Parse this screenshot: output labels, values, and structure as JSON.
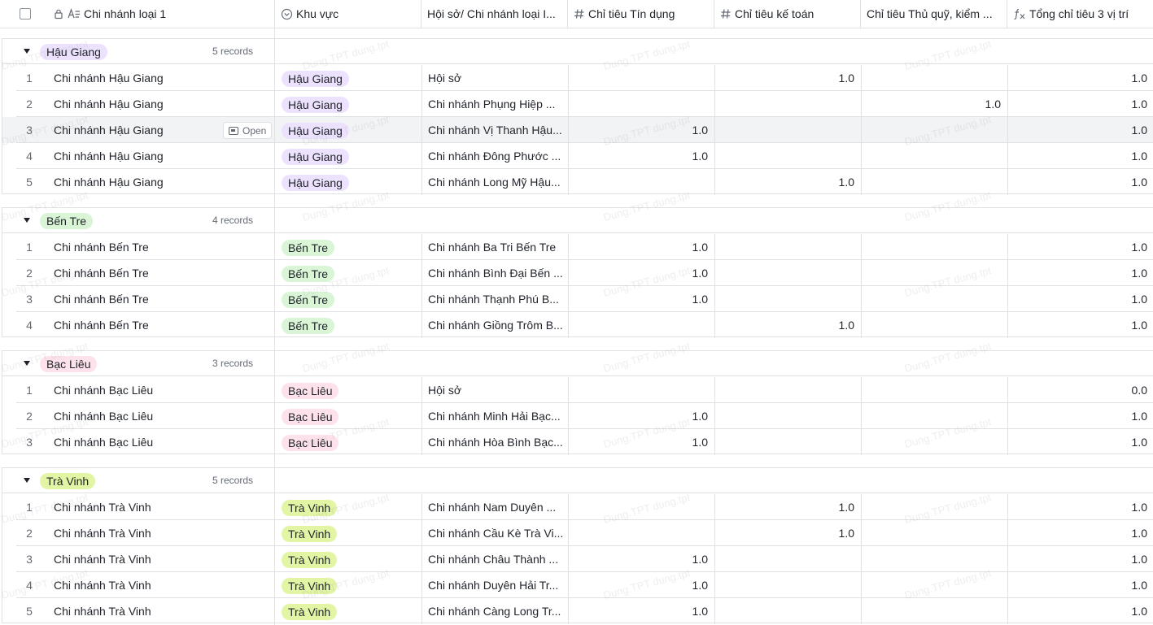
{
  "header": {
    "columns": [
      {
        "label": "Chi nhánh loại 1",
        "icon": "text-lock-icon"
      },
      {
        "label": "Khu vực",
        "icon": "single-select-icon"
      },
      {
        "label": "Hội sở/ Chi nhánh loại I...",
        "icon": ""
      },
      {
        "label": "Chỉ tiêu Tín dụng",
        "icon": "number-icon"
      },
      {
        "label": "Chỉ tiêu kế toán",
        "icon": "number-icon"
      },
      {
        "label": "Chỉ tiêu Thủ quỹ, kiểm ...",
        "icon": ""
      },
      {
        "label": "Tổng chỉ tiêu 3 vị trí",
        "icon": "formula-icon"
      }
    ]
  },
  "open_label": "Open",
  "watermark": "Dung.TPT dung.tpt",
  "colors": {
    "hau_giang_bg": "#ece2fe",
    "ben_tre_bg": "#d9f5d6",
    "bac_lieu_bg": "#fde2ec",
    "tra_vinh_bg": "#e1f5a5",
    "border": "#dee0e3",
    "hover": "#f2f3f5"
  },
  "groups": [
    {
      "name": "Hậu Giang",
      "count": "5 records",
      "tag_bg": "#ece2fe",
      "rows": [
        {
          "n": "1",
          "branch": "Chi nhánh Hậu Giang",
          "region": "Hậu Giang",
          "office": "Hội sở",
          "credit": "",
          "accounting": "1.0",
          "cashier": "",
          "total": "1.0"
        },
        {
          "n": "2",
          "branch": "Chi nhánh Hậu Giang",
          "region": "Hậu Giang",
          "office": "Chi nhánh Phụng Hiệp ...",
          "credit": "",
          "accounting": "",
          "cashier": "1.0",
          "total": "1.0"
        },
        {
          "n": "3",
          "branch": "Chi nhánh Hậu Giang",
          "region": "Hậu Giang",
          "office": "Chi nhánh Vị Thanh Hậu...",
          "credit": "1.0",
          "accounting": "",
          "cashier": "",
          "total": "1.0",
          "hover": true
        },
        {
          "n": "4",
          "branch": "Chi nhánh Hậu Giang",
          "region": "Hậu Giang",
          "office": "Chi nhánh Đông Phước ...",
          "credit": "1.0",
          "accounting": "",
          "cashier": "",
          "total": "1.0"
        },
        {
          "n": "5",
          "branch": "Chi nhánh Hậu Giang",
          "region": "Hậu Giang",
          "office": "Chi nhánh Long Mỹ Hậu...",
          "credit": "",
          "accounting": "1.0",
          "cashier": "",
          "total": "1.0"
        }
      ]
    },
    {
      "name": "Bến Tre",
      "count": "4 records",
      "tag_bg": "#d9f5d6",
      "rows": [
        {
          "n": "1",
          "branch": "Chi nhánh Bến Tre",
          "region": "Bến Tre",
          "office": "Chi nhánh Ba Tri Bến Tre",
          "credit": "1.0",
          "accounting": "",
          "cashier": "",
          "total": "1.0"
        },
        {
          "n": "2",
          "branch": "Chi nhánh Bến Tre",
          "region": "Bến Tre",
          "office": "Chi nhánh Bình Đại Bến ...",
          "credit": "1.0",
          "accounting": "",
          "cashier": "",
          "total": "1.0"
        },
        {
          "n": "3",
          "branch": "Chi nhánh Bến Tre",
          "region": "Bến Tre",
          "office": "Chi nhánh Thạnh Phú B...",
          "credit": "1.0",
          "accounting": "",
          "cashier": "",
          "total": "1.0"
        },
        {
          "n": "4",
          "branch": "Chi nhánh Bến Tre",
          "region": "Bến Tre",
          "office": "Chi nhánh Giồng Trôm B...",
          "credit": "",
          "accounting": "1.0",
          "cashier": "",
          "total": "1.0"
        }
      ]
    },
    {
      "name": "Bạc Liêu",
      "count": "3 records",
      "tag_bg": "#fde2ec",
      "rows": [
        {
          "n": "1",
          "branch": "Chi nhánh Bạc Liêu",
          "region": "Bạc Liêu",
          "office": "Hội sở",
          "credit": "",
          "accounting": "",
          "cashier": "",
          "total": "0.0"
        },
        {
          "n": "2",
          "branch": "Chi nhánh Bạc Liêu",
          "region": "Bạc Liêu",
          "office": "Chi nhánh Minh Hải Bạc...",
          "credit": "1.0",
          "accounting": "",
          "cashier": "",
          "total": "1.0"
        },
        {
          "n": "3",
          "branch": "Chi nhánh Bạc Liêu",
          "region": "Bạc Liêu",
          "office": "Chi nhánh Hòa Bình Bạc...",
          "credit": "1.0",
          "accounting": "",
          "cashier": "",
          "total": "1.0"
        }
      ]
    },
    {
      "name": "Trà Vinh",
      "count": "5 records",
      "tag_bg": "#e1f5a5",
      "rows": [
        {
          "n": "1",
          "branch": "Chi nhánh Trà Vinh",
          "region": "Trà Vinh",
          "office": "Chi nhánh Nam Duyên ...",
          "credit": "",
          "accounting": "1.0",
          "cashier": "",
          "total": "1.0"
        },
        {
          "n": "2",
          "branch": "Chi nhánh Trà Vinh",
          "region": "Trà Vinh",
          "office": "Chi nhánh Cầu Kè Trà Vi...",
          "credit": "",
          "accounting": "1.0",
          "cashier": "",
          "total": "1.0"
        },
        {
          "n": "3",
          "branch": "Chi nhánh Trà Vinh",
          "region": "Trà Vinh",
          "office": "Chi nhánh Châu Thành ...",
          "credit": "1.0",
          "accounting": "",
          "cashier": "",
          "total": "1.0"
        },
        {
          "n": "4",
          "branch": "Chi nhánh Trà Vinh",
          "region": "Trà Vinh",
          "office": "Chi nhánh Duyên Hải Tr...",
          "credit": "1.0",
          "accounting": "",
          "cashier": "",
          "total": "1.0"
        },
        {
          "n": "5",
          "branch": "Chi nhánh Trà Vinh",
          "region": "Trà Vinh",
          "office": "Chi nhánh Càng Long Tr...",
          "credit": "1.0",
          "accounting": "",
          "cashier": "",
          "total": "1.0"
        }
      ]
    }
  ]
}
